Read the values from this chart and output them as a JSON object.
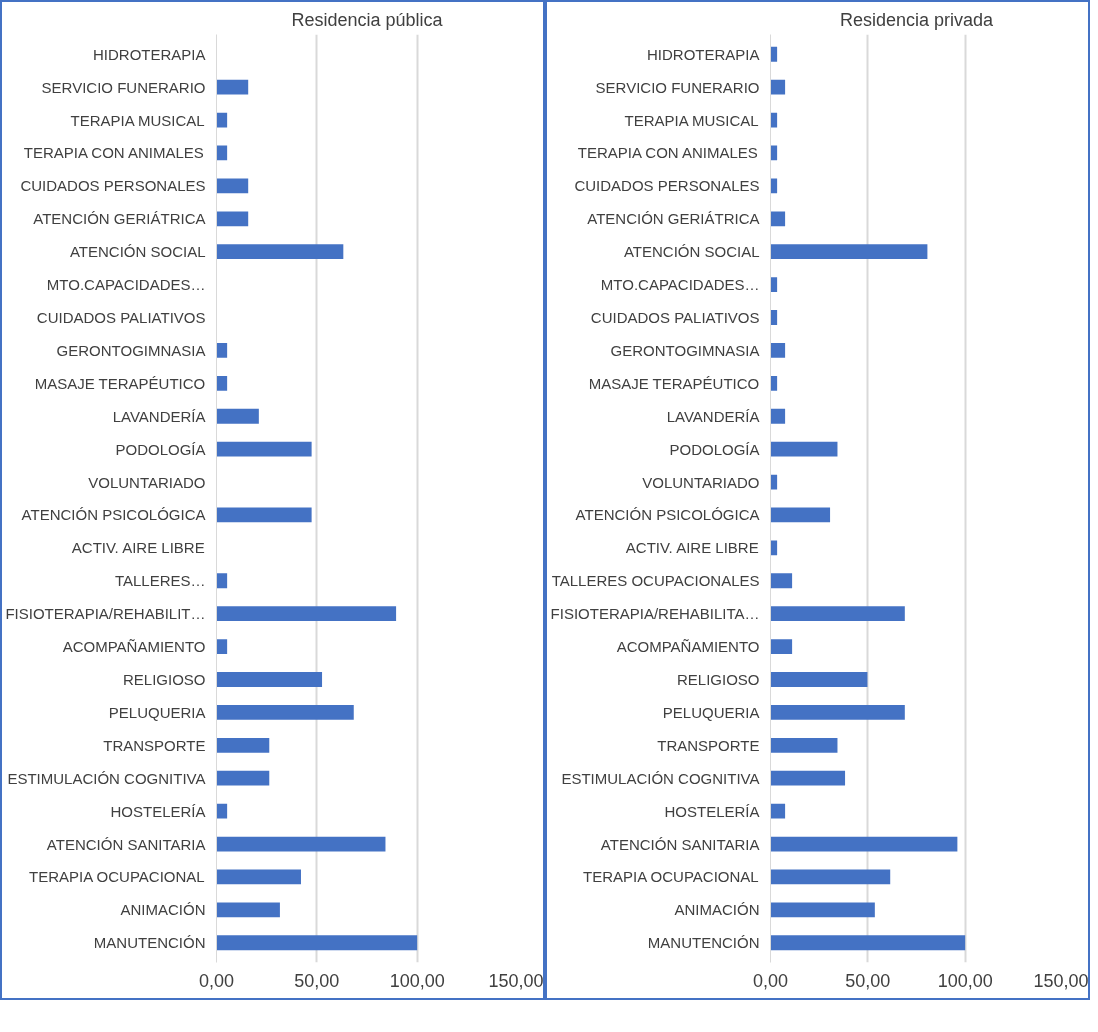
{
  "chart_data": [
    {
      "type": "bar",
      "orientation": "horizontal",
      "title": "Residencia pública",
      "categories": [
        "HIDROTERAPIA",
        "SERVICIO FUNERARIO",
        "TERAPIA MUSICAL",
        "TERAPIA CON ANIMALES",
        "CUIDADOS PERSONALES",
        "ATENCIÓN GERIÁTRICA",
        "ATENCIÓN SOCIAL",
        "MTO.CAPACIDADES…",
        "CUIDADOS PALIATIVOS",
        "GERONTOGIMNASIA",
        "MASAJE TERAPÉUTICO",
        "LAVANDERÍA",
        "PODOLOGÍA",
        "VOLUNTARIADO",
        "ATENCIÓN PSICOLÓGICA",
        "ACTIV. AIRE LIBRE",
        "TALLERES…",
        "FISIOTERAPIA/REHABILIT…",
        "ACOMPAÑAMIENTO",
        "RELIGIOSO",
        "PELUQUERIA",
        "TRANSPORTE",
        "ESTIMULACIÓN COGNITIVA",
        "HOSTELERÍA",
        "ATENCIÓN SANITARIA",
        "TERAPIA OCUPACIONAL",
        "ANIMACIÓN",
        "MANUTENCIÓN"
      ],
      "values": [
        0,
        15.8,
        5.3,
        5.3,
        15.8,
        15.8,
        63.2,
        0,
        0,
        5.3,
        5.3,
        21.1,
        47.4,
        0,
        47.4,
        0,
        5.3,
        89.5,
        5.3,
        52.6,
        68.4,
        26.3,
        26.3,
        5.3,
        84.2,
        42.1,
        31.6,
        100
      ],
      "color": "#4472c4",
      "xlim": [
        0,
        150
      ],
      "xticks": [
        {
          "value": 0,
          "label": "0,00"
        },
        {
          "value": 50,
          "label": "50,00"
        },
        {
          "value": 100,
          "label": "100,00"
        },
        {
          "value": 150,
          "label": "150,00"
        }
      ],
      "grid": "x"
    },
    {
      "type": "bar",
      "orientation": "horizontal",
      "title": "Residencia privada",
      "categories": [
        "HIDROTERAPIA",
        "SERVICIO FUNERARIO",
        "TERAPIA MUSICAL",
        "TERAPIA CON ANIMALES",
        "CUIDADOS PERSONALES",
        "ATENCIÓN GERIÁTRICA",
        "ATENCIÓN SOCIAL",
        "MTO.CAPACIDADES…",
        "CUIDADOS PALIATIVOS",
        "GERONTOGIMNASIA",
        "MASAJE TERAPÉUTICO",
        "LAVANDERÍA",
        "PODOLOGÍA",
        "VOLUNTARIADO",
        "ATENCIÓN PSICOLÓGICA",
        "ACTIV. AIRE LIBRE",
        "TALLERES OCUPACIONALES",
        "FISIOTERAPIA/REHABILITA…",
        "ACOMPAÑAMIENTO",
        "RELIGIOSO",
        "PELUQUERIA",
        "TRANSPORTE",
        "ESTIMULACIÓN COGNITIVA",
        "HOSTELERÍA",
        "ATENCIÓN SANITARIA",
        "TERAPIA OCUPACIONAL",
        "ANIMACIÓN",
        "MANUTENCIÓN"
      ],
      "values": [
        3.4,
        7.5,
        3.4,
        3.4,
        3.4,
        7.5,
        80.6,
        3.4,
        3.4,
        7.5,
        3.4,
        7.5,
        34.4,
        3.4,
        30.6,
        3.4,
        11.1,
        69,
        11.1,
        49.8,
        69,
        34.4,
        38.3,
        7.5,
        96,
        61.5,
        53.6,
        100
      ],
      "color": "#4472c4",
      "xlim": [
        0,
        150
      ],
      "xticks": [
        {
          "value": 0,
          "label": "0,00"
        },
        {
          "value": 50,
          "label": "50,00"
        },
        {
          "value": 100,
          "label": "100,00"
        },
        {
          "value": 150,
          "label": "150,00"
        }
      ],
      "grid": "x"
    }
  ]
}
